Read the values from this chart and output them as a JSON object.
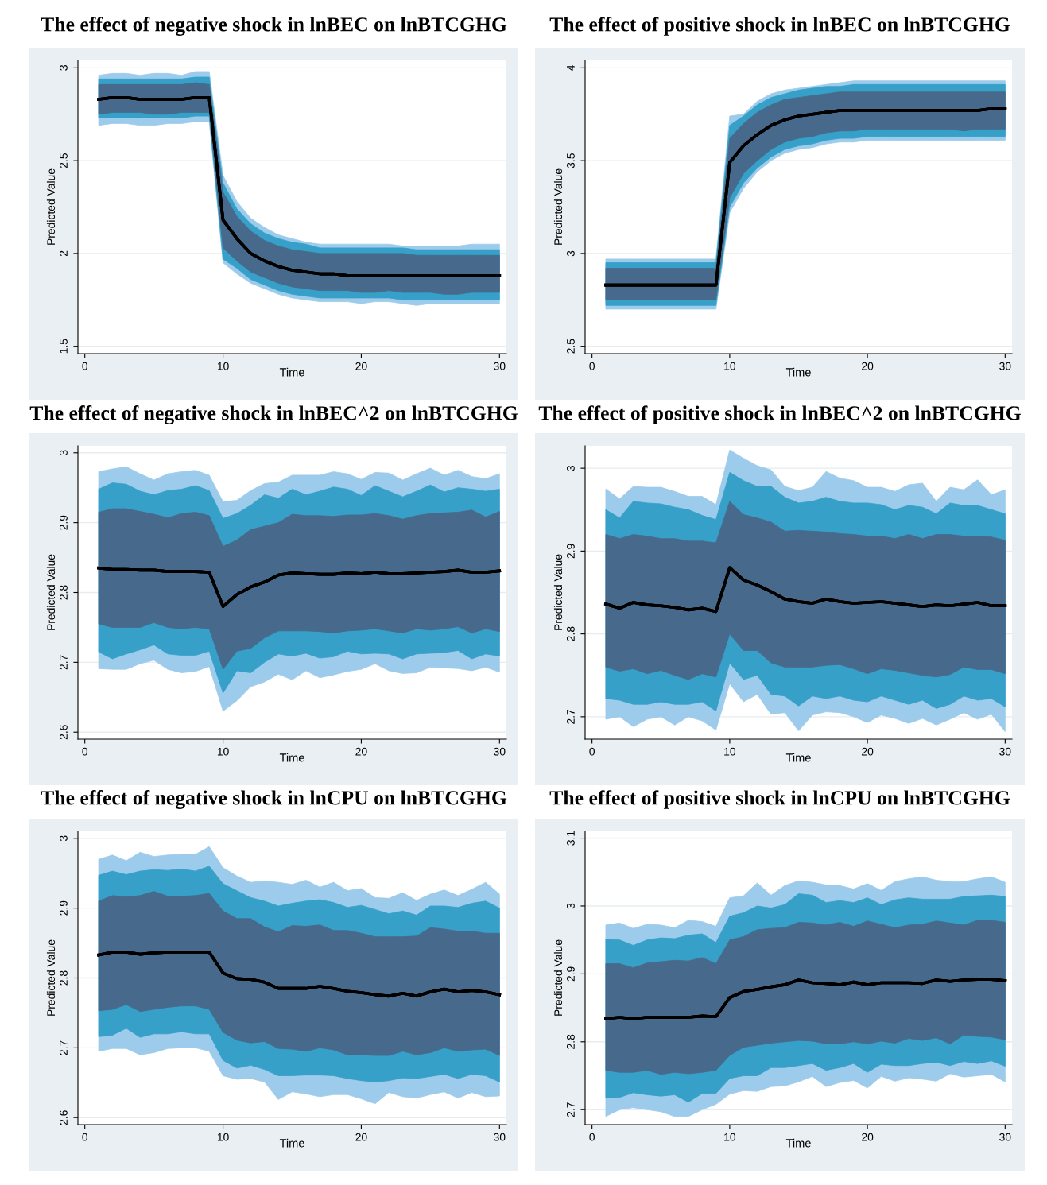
{
  "chart_data": [
    {
      "type": "line",
      "title": "The effect of negative shock in lnBEC on lnBTCGHG",
      "xlabel": "Time",
      "ylabel": "Predicted Value",
      "x": [
        1,
        2,
        3,
        4,
        5,
        6,
        7,
        8,
        9,
        10,
        11,
        12,
        13,
        14,
        15,
        16,
        17,
        18,
        19,
        20,
        21,
        22,
        23,
        24,
        25,
        26,
        27,
        28,
        29,
        30
      ],
      "xlim": [
        -0.5,
        30.5
      ],
      "xticks": [
        0,
        10,
        20,
        30
      ],
      "ylim": [
        1.46,
        3.04
      ],
      "yticks": [
        1.5,
        2,
        2.5,
        3
      ],
      "grid": "y",
      "series": [
        {
          "type": "line",
          "color": "#000000",
          "values": [
            2.83,
            2.84,
            2.84,
            2.83,
            2.83,
            2.83,
            2.83,
            2.84,
            2.84,
            2.18,
            2.08,
            2.0,
            1.96,
            1.93,
            1.91,
            1.9,
            1.89,
            1.89,
            1.88,
            1.88,
            1.88,
            1.88,
            1.88,
            1.88,
            1.88,
            1.88,
            1.88,
            1.88,
            1.88,
            1.88
          ],
          "lower": [
            2.69,
            2.7,
            2.7,
            2.69,
            2.69,
            2.7,
            2.7,
            2.71,
            2.71,
            1.95,
            1.89,
            1.84,
            1.81,
            1.78,
            1.76,
            1.75,
            1.74,
            1.74,
            1.74,
            1.73,
            1.74,
            1.74,
            1.73,
            1.72,
            1.73,
            1.73,
            1.73,
            1.73,
            1.73,
            1.73
          ],
          "upper": [
            2.96,
            2.97,
            2.97,
            2.96,
            2.97,
            2.97,
            2.96,
            2.98,
            2.98,
            2.42,
            2.28,
            2.19,
            2.14,
            2.1,
            2.08,
            2.06,
            2.05,
            2.05,
            2.05,
            2.05,
            2.05,
            2.05,
            2.04,
            2.04,
            2.04,
            2.04,
            2.04,
            2.05,
            2.05,
            2.05
          ]
        },
        {
          "type": "line",
          "color": "#000000",
          "values": [
            2.83,
            2.84,
            2.84,
            2.83,
            2.83,
            2.83,
            2.83,
            2.84,
            2.84,
            2.18,
            2.08,
            2.0,
            1.96,
            1.93,
            1.91,
            1.9,
            1.89,
            1.89,
            1.88,
            1.88,
            1.88,
            1.88,
            1.88,
            1.88,
            1.88,
            1.88,
            1.88,
            1.88,
            1.88,
            1.88
          ],
          "lower": [
            2.73,
            2.73,
            2.73,
            2.73,
            2.73,
            2.73,
            2.73,
            2.74,
            2.74,
            1.97,
            1.92,
            1.86,
            1.83,
            1.8,
            1.78,
            1.77,
            1.76,
            1.76,
            1.76,
            1.76,
            1.76,
            1.76,
            1.75,
            1.75,
            1.75,
            1.75,
            1.75,
            1.75,
            1.75,
            1.75
          ],
          "upper": [
            2.94,
            2.94,
            2.94,
            2.94,
            2.94,
            2.94,
            2.94,
            2.95,
            2.95,
            2.38,
            2.24,
            2.16,
            2.11,
            2.08,
            2.06,
            2.05,
            2.03,
            2.03,
            2.03,
            2.03,
            2.03,
            2.03,
            2.03,
            2.02,
            2.02,
            2.02,
            2.02,
            2.02,
            2.02,
            2.02
          ]
        },
        {
          "type": "line",
          "color": "#000000",
          "values": [
            2.83,
            2.84,
            2.84,
            2.83,
            2.83,
            2.83,
            2.83,
            2.84,
            2.84,
            2.18,
            2.08,
            2.0,
            1.96,
            1.93,
            1.91,
            1.9,
            1.89,
            1.89,
            1.88,
            1.88,
            1.88,
            1.88,
            1.88,
            1.88,
            1.88,
            1.88,
            1.88,
            1.88,
            1.88,
            1.88
          ],
          "lower": [
            2.75,
            2.76,
            2.76,
            2.76,
            2.75,
            2.75,
            2.76,
            2.76,
            2.76,
            2.03,
            1.96,
            1.9,
            1.87,
            1.84,
            1.82,
            1.81,
            1.8,
            1.8,
            1.8,
            1.79,
            1.79,
            1.8,
            1.79,
            1.79,
            1.79,
            1.78,
            1.78,
            1.79,
            1.79,
            1.79
          ],
          "upper": [
            2.91,
            2.91,
            2.91,
            2.91,
            2.91,
            2.91,
            2.91,
            2.92,
            2.91,
            2.33,
            2.2,
            2.12,
            2.07,
            2.04,
            2.02,
            2.01,
            2.0,
            2.0,
            2.0,
            2.0,
            2.0,
            2.0,
            2.0,
            1.99,
            1.99,
            1.99,
            1.99,
            1.99,
            1.99,
            1.99
          ]
        }
      ]
    },
    {
      "type": "line",
      "title": "The effect of positive shock in lnBEC on lnBTCGHG",
      "xlabel": "Time",
      "ylabel": "Predicted Value",
      "x": [
        1,
        2,
        3,
        4,
        5,
        6,
        7,
        8,
        9,
        10,
        11,
        12,
        13,
        14,
        15,
        16,
        17,
        18,
        19,
        20,
        21,
        22,
        23,
        24,
        25,
        26,
        27,
        28,
        29,
        30
      ],
      "xlim": [
        -0.5,
        30.5
      ],
      "xticks": [
        0,
        10,
        20,
        30
      ],
      "ylim": [
        2.46,
        4.04
      ],
      "yticks": [
        2.5,
        3,
        3.5,
        4
      ],
      "grid": "y",
      "series": [
        {
          "type": "line",
          "color": "#000000",
          "values": [
            2.83,
            2.83,
            2.83,
            2.83,
            2.83,
            2.83,
            2.83,
            2.83,
            2.83,
            3.49,
            3.58,
            3.64,
            3.69,
            3.72,
            3.74,
            3.75,
            3.76,
            3.77,
            3.77,
            3.77,
            3.77,
            3.77,
            3.77,
            3.77,
            3.77,
            3.77,
            3.77,
            3.77,
            3.78,
            3.78
          ],
          "lower": [
            2.7,
            2.7,
            2.7,
            2.7,
            2.7,
            2.7,
            2.7,
            2.7,
            2.7,
            3.22,
            3.35,
            3.44,
            3.5,
            3.54,
            3.56,
            3.57,
            3.59,
            3.6,
            3.6,
            3.61,
            3.61,
            3.61,
            3.61,
            3.61,
            3.61,
            3.61,
            3.61,
            3.61,
            3.61,
            3.61
          ],
          "upper": [
            2.97,
            2.97,
            2.97,
            2.97,
            2.97,
            2.97,
            2.97,
            2.97,
            2.97,
            3.74,
            3.75,
            3.82,
            3.86,
            3.88,
            3.89,
            3.9,
            3.91,
            3.92,
            3.93,
            3.93,
            3.93,
            3.93,
            3.93,
            3.93,
            3.93,
            3.93,
            3.93,
            3.93,
            3.93,
            3.93
          ]
        },
        {
          "type": "line",
          "color": "#000000",
          "values": [
            2.83,
            2.83,
            2.83,
            2.83,
            2.83,
            2.83,
            2.83,
            2.83,
            2.83,
            3.49,
            3.58,
            3.64,
            3.69,
            3.72,
            3.74,
            3.75,
            3.76,
            3.77,
            3.77,
            3.77,
            3.77,
            3.77,
            3.77,
            3.77,
            3.77,
            3.77,
            3.77,
            3.77,
            3.78,
            3.78
          ],
          "lower": [
            2.72,
            2.72,
            2.72,
            2.72,
            2.72,
            2.72,
            2.72,
            2.72,
            2.72,
            3.25,
            3.38,
            3.46,
            3.52,
            3.56,
            3.58,
            3.59,
            3.61,
            3.62,
            3.62,
            3.63,
            3.63,
            3.63,
            3.63,
            3.63,
            3.63,
            3.63,
            3.63,
            3.63,
            3.63,
            3.63
          ],
          "upper": [
            2.95,
            2.95,
            2.95,
            2.95,
            2.95,
            2.95,
            2.95,
            2.95,
            2.95,
            3.69,
            3.74,
            3.8,
            3.84,
            3.86,
            3.88,
            3.89,
            3.9,
            3.9,
            3.91,
            3.91,
            3.91,
            3.91,
            3.91,
            3.91,
            3.91,
            3.91,
            3.91,
            3.91,
            3.91,
            3.91
          ]
        },
        {
          "type": "line",
          "color": "#000000",
          "values": [
            2.83,
            2.83,
            2.83,
            2.83,
            2.83,
            2.83,
            2.83,
            2.83,
            2.83,
            3.49,
            3.58,
            3.64,
            3.69,
            3.72,
            3.74,
            3.75,
            3.76,
            3.77,
            3.77,
            3.77,
            3.77,
            3.77,
            3.77,
            3.77,
            3.77,
            3.77,
            3.77,
            3.77,
            3.78,
            3.78
          ],
          "lower": [
            2.75,
            2.75,
            2.75,
            2.75,
            2.75,
            2.75,
            2.75,
            2.75,
            2.75,
            3.3,
            3.43,
            3.5,
            3.56,
            3.6,
            3.62,
            3.63,
            3.65,
            3.66,
            3.66,
            3.67,
            3.67,
            3.67,
            3.67,
            3.67,
            3.67,
            3.67,
            3.66,
            3.67,
            3.67,
            3.67
          ],
          "upper": [
            2.92,
            2.92,
            2.92,
            2.92,
            2.92,
            2.92,
            2.92,
            2.92,
            2.92,
            3.62,
            3.7,
            3.76,
            3.8,
            3.83,
            3.84,
            3.85,
            3.86,
            3.87,
            3.87,
            3.87,
            3.87,
            3.87,
            3.87,
            3.87,
            3.87,
            3.87,
            3.87,
            3.87,
            3.87,
            3.87
          ]
        }
      ]
    },
    {
      "type": "line",
      "title": "The effect of negative shock in lnBEC^2 on lnBTCGHG",
      "xlabel": "Time",
      "ylabel": "Predicted Value",
      "x": [
        1,
        2,
        3,
        4,
        5,
        6,
        7,
        8,
        9,
        10,
        11,
        12,
        13,
        14,
        15,
        16,
        17,
        18,
        19,
        20,
        21,
        22,
        23,
        24,
        25,
        26,
        27,
        28,
        29,
        30
      ],
      "xlim": [
        -0.5,
        30.5
      ],
      "xticks": [
        0,
        10,
        20,
        30
      ],
      "ylim": [
        2.59,
        3.01
      ],
      "yticks": [
        2.6,
        2.7,
        2.8,
        2.9,
        3
      ],
      "grid": "y",
      "series": [
        {
          "type": "line",
          "color": "#000000",
          "values": [
            2.835,
            2.833,
            2.833,
            2.832,
            2.832,
            2.83,
            2.83,
            2.83,
            2.829,
            2.78,
            2.797,
            2.808,
            2.815,
            2.825,
            2.828,
            2.827,
            2.826,
            2.826,
            2.828,
            2.827,
            2.829,
            2.827,
            2.827,
            2.828,
            2.829,
            2.83,
            2.832,
            2.829,
            2.829,
            2.831
          ],
          "lower": [
            2.691,
            2.69,
            2.69,
            2.698,
            2.703,
            2.69,
            2.685,
            2.687,
            2.694,
            2.63,
            2.645,
            2.665,
            2.672,
            2.683,
            2.675,
            2.688,
            2.678,
            2.682,
            2.687,
            2.69,
            2.698,
            2.688,
            2.684,
            2.685,
            2.693,
            2.692,
            2.691,
            2.688,
            2.693,
            2.686
          ],
          "upper": [
            2.973,
            2.977,
            2.98,
            2.97,
            2.961,
            2.97,
            2.973,
            2.975,
            2.968,
            2.93,
            2.932,
            2.946,
            2.956,
            2.958,
            2.968,
            2.968,
            2.968,
            2.973,
            2.97,
            2.962,
            2.972,
            2.971,
            2.961,
            2.97,
            2.978,
            2.968,
            2.975,
            2.966,
            2.963,
            2.97
          ]
        },
        {
          "type": "line",
          "color": "#000000",
          "values": [
            2.835,
            2.833,
            2.833,
            2.832,
            2.832,
            2.83,
            2.83,
            2.83,
            2.829,
            2.78,
            2.797,
            2.808,
            2.815,
            2.825,
            2.828,
            2.827,
            2.826,
            2.826,
            2.828,
            2.827,
            2.829,
            2.827,
            2.827,
            2.828,
            2.829,
            2.83,
            2.832,
            2.829,
            2.829,
            2.831
          ],
          "lower": [
            2.715,
            2.705,
            2.712,
            2.718,
            2.725,
            2.712,
            2.71,
            2.71,
            2.716,
            2.656,
            2.688,
            2.685,
            2.7,
            2.712,
            2.709,
            2.713,
            2.706,
            2.708,
            2.716,
            2.712,
            2.713,
            2.712,
            2.705,
            2.712,
            2.713,
            2.714,
            2.717,
            2.705,
            2.712,
            2.709
          ],
          "upper": [
            2.948,
            2.957,
            2.955,
            2.945,
            2.94,
            2.946,
            2.948,
            2.953,
            2.946,
            2.906,
            2.913,
            2.925,
            2.94,
            2.935,
            2.948,
            2.94,
            2.945,
            2.951,
            2.948,
            2.939,
            2.953,
            2.945,
            2.937,
            2.945,
            2.954,
            2.944,
            2.95,
            2.948,
            2.945,
            2.948
          ]
        },
        {
          "type": "line",
          "color": "#000000",
          "values": [
            2.835,
            2.833,
            2.833,
            2.832,
            2.832,
            2.83,
            2.83,
            2.83,
            2.829,
            2.78,
            2.797,
            2.808,
            2.815,
            2.825,
            2.828,
            2.827,
            2.826,
            2.826,
            2.828,
            2.827,
            2.829,
            2.827,
            2.827,
            2.828,
            2.829,
            2.83,
            2.832,
            2.829,
            2.829,
            2.831
          ],
          "lower": [
            2.755,
            2.75,
            2.75,
            2.75,
            2.757,
            2.75,
            2.748,
            2.75,
            2.748,
            2.69,
            2.716,
            2.72,
            2.735,
            2.745,
            2.745,
            2.745,
            2.744,
            2.742,
            2.745,
            2.746,
            2.748,
            2.745,
            2.742,
            2.748,
            2.746,
            2.748,
            2.751,
            2.742,
            2.748,
            2.744
          ],
          "upper": [
            2.915,
            2.92,
            2.92,
            2.916,
            2.912,
            2.907,
            2.913,
            2.915,
            2.91,
            2.866,
            2.875,
            2.89,
            2.895,
            2.9,
            2.912,
            2.91,
            2.91,
            2.909,
            2.911,
            2.911,
            2.913,
            2.91,
            2.905,
            2.91,
            2.913,
            2.914,
            2.915,
            2.918,
            2.908,
            2.916
          ]
        }
      ]
    },
    {
      "type": "line",
      "title": "The effect of positive shock in lnBEC^2 on lnBTCGHG",
      "xlabel": "Time",
      "ylabel": "Predicted Value",
      "x": [
        1,
        2,
        3,
        4,
        5,
        6,
        7,
        8,
        9,
        10,
        11,
        12,
        13,
        14,
        15,
        16,
        17,
        18,
        19,
        20,
        21,
        22,
        23,
        24,
        25,
        26,
        27,
        28,
        29,
        30
      ],
      "xlim": [
        -0.5,
        30.5
      ],
      "xticks": [
        0,
        10,
        20,
        30
      ],
      "ylim": [
        2.673,
        3.027
      ],
      "yticks": [
        2.7,
        2.8,
        2.9,
        3
      ],
      "grid": "y",
      "series": [
        {
          "type": "line",
          "color": "#000000",
          "values": [
            2.836,
            2.831,
            2.838,
            2.835,
            2.834,
            2.832,
            2.829,
            2.831,
            2.827,
            2.88,
            2.865,
            2.859,
            2.851,
            2.842,
            2.839,
            2.837,
            2.842,
            2.839,
            2.837,
            2.838,
            2.839,
            2.837,
            2.835,
            2.833,
            2.835,
            2.834,
            2.836,
            2.838,
            2.834,
            2.834
          ],
          "lower": [
            2.697,
            2.7,
            2.688,
            2.697,
            2.7,
            2.69,
            2.7,
            2.695,
            2.684,
            2.74,
            2.718,
            2.727,
            2.703,
            2.705,
            2.683,
            2.702,
            2.706,
            2.705,
            2.7,
            2.693,
            2.702,
            2.698,
            2.692,
            2.698,
            2.69,
            2.697,
            2.705,
            2.697,
            2.703,
            2.682
          ],
          "upper": [
            2.975,
            2.963,
            2.978,
            2.977,
            2.977,
            2.972,
            2.966,
            2.966,
            2.956,
            3.022,
            3.012,
            3.003,
            2.998,
            2.978,
            2.973,
            2.977,
            2.996,
            2.988,
            2.985,
            2.977,
            2.977,
            2.972,
            2.98,
            2.982,
            2.96,
            2.977,
            2.974,
            2.986,
            2.968,
            2.974
          ]
        },
        {
          "type": "line",
          "color": "#000000",
          "values": [
            2.836,
            2.831,
            2.838,
            2.835,
            2.834,
            2.832,
            2.829,
            2.831,
            2.827,
            2.88,
            2.865,
            2.859,
            2.851,
            2.842,
            2.839,
            2.837,
            2.842,
            2.839,
            2.837,
            2.838,
            2.839,
            2.837,
            2.835,
            2.833,
            2.835,
            2.834,
            2.836,
            2.838,
            2.834,
            2.834
          ],
          "lower": [
            2.722,
            2.72,
            2.715,
            2.715,
            2.718,
            2.715,
            2.715,
            2.718,
            2.707,
            2.765,
            2.745,
            2.75,
            2.727,
            2.725,
            2.713,
            2.725,
            2.722,
            2.725,
            2.72,
            2.718,
            2.725,
            2.72,
            2.715,
            2.72,
            2.71,
            2.715,
            2.725,
            2.72,
            2.722,
            2.712
          ],
          "upper": [
            2.95,
            2.94,
            2.96,
            2.958,
            2.957,
            2.953,
            2.95,
            2.943,
            2.938,
            2.995,
            2.985,
            2.978,
            2.978,
            2.965,
            2.958,
            2.96,
            2.965,
            2.96,
            2.958,
            2.958,
            2.956,
            2.95,
            2.955,
            2.953,
            2.945,
            2.958,
            2.955,
            2.955,
            2.95,
            2.945
          ]
        },
        {
          "type": "line",
          "color": "#000000",
          "values": [
            2.836,
            2.831,
            2.838,
            2.835,
            2.834,
            2.832,
            2.829,
            2.831,
            2.827,
            2.88,
            2.865,
            2.859,
            2.851,
            2.842,
            2.839,
            2.837,
            2.842,
            2.839,
            2.837,
            2.838,
            2.839,
            2.837,
            2.835,
            2.833,
            2.835,
            2.834,
            2.836,
            2.838,
            2.834,
            2.834
          ],
          "lower": [
            2.76,
            2.755,
            2.758,
            2.752,
            2.756,
            2.75,
            2.745,
            2.752,
            2.748,
            2.8,
            2.78,
            2.78,
            2.765,
            2.76,
            2.76,
            2.76,
            2.762,
            2.763,
            2.758,
            2.752,
            2.758,
            2.756,
            2.753,
            2.75,
            2.748,
            2.751,
            2.76,
            2.757,
            2.757,
            2.752
          ],
          "upper": [
            2.92,
            2.915,
            2.92,
            2.918,
            2.915,
            2.915,
            2.912,
            2.912,
            2.91,
            2.96,
            2.944,
            2.94,
            2.935,
            2.924,
            2.925,
            2.924,
            2.923,
            2.921,
            2.92,
            2.918,
            2.918,
            2.915,
            2.92,
            2.915,
            2.92,
            2.92,
            2.918,
            2.918,
            2.917,
            2.913
          ]
        }
      ]
    },
    {
      "type": "line",
      "title": "The effect of negative shock in lnCPU on lnBTCGHG",
      "xlabel": "Time",
      "ylabel": "Predicted Value",
      "x": [
        1,
        2,
        3,
        4,
        5,
        6,
        7,
        8,
        9,
        10,
        11,
        12,
        13,
        14,
        15,
        16,
        17,
        18,
        19,
        20,
        21,
        22,
        23,
        24,
        25,
        26,
        27,
        28,
        29,
        30
      ],
      "xlim": [
        -0.5,
        30.5
      ],
      "xticks": [
        0,
        10,
        20,
        30
      ],
      "ylim": [
        2.59,
        3.01
      ],
      "yticks": [
        2.6,
        2.7,
        2.8,
        2.9,
        3
      ],
      "grid": "y",
      "series": [
        {
          "type": "line",
          "color": "#000000",
          "values": [
            2.833,
            2.837,
            2.837,
            2.834,
            2.836,
            2.837,
            2.837,
            2.837,
            2.837,
            2.807,
            2.799,
            2.798,
            2.794,
            2.785,
            2.785,
            2.785,
            2.788,
            2.785,
            2.781,
            2.779,
            2.776,
            2.774,
            2.778,
            2.774,
            2.78,
            2.784,
            2.78,
            2.782,
            2.78,
            2.776
          ],
          "lower": [
            2.695,
            2.699,
            2.699,
            2.69,
            2.693,
            2.699,
            2.7,
            2.7,
            2.695,
            2.66,
            2.655,
            2.656,
            2.651,
            2.626,
            2.637,
            2.634,
            2.63,
            2.633,
            2.633,
            2.627,
            2.62,
            2.636,
            2.63,
            2.628,
            2.633,
            2.637,
            2.628,
            2.636,
            2.63,
            2.631
          ],
          "upper": [
            2.97,
            2.976,
            2.968,
            2.98,
            2.974,
            2.976,
            2.977,
            2.977,
            2.988,
            2.958,
            2.946,
            2.937,
            2.939,
            2.937,
            2.934,
            2.94,
            2.93,
            2.937,
            2.925,
            2.928,
            2.915,
            2.914,
            2.922,
            2.911,
            2.92,
            2.926,
            2.918,
            2.927,
            2.937,
            2.92
          ]
        },
        {
          "type": "line",
          "color": "#000000",
          "values": [
            2.833,
            2.837,
            2.837,
            2.834,
            2.836,
            2.837,
            2.837,
            2.837,
            2.837,
            2.807,
            2.799,
            2.798,
            2.794,
            2.785,
            2.785,
            2.785,
            2.788,
            2.785,
            2.781,
            2.779,
            2.776,
            2.774,
            2.778,
            2.774,
            2.78,
            2.784,
            2.78,
            2.782,
            2.78,
            2.776
          ],
          "lower": [
            2.716,
            2.718,
            2.728,
            2.715,
            2.72,
            2.72,
            2.723,
            2.72,
            2.72,
            2.682,
            2.671,
            2.675,
            2.669,
            2.66,
            2.66,
            2.661,
            2.661,
            2.66,
            2.656,
            2.653,
            2.651,
            2.653,
            2.657,
            2.656,
            2.659,
            2.662,
            2.656,
            2.662,
            2.66,
            2.651
          ],
          "upper": [
            2.947,
            2.953,
            2.948,
            2.953,
            2.955,
            2.954,
            2.956,
            2.953,
            2.96,
            2.935,
            2.925,
            2.915,
            2.91,
            2.903,
            2.907,
            2.91,
            2.912,
            2.908,
            2.901,
            2.904,
            2.898,
            2.892,
            2.896,
            2.89,
            2.903,
            2.903,
            2.901,
            2.907,
            2.91,
            2.9
          ]
        },
        {
          "type": "line",
          "color": "#000000",
          "values": [
            2.833,
            2.837,
            2.837,
            2.834,
            2.836,
            2.837,
            2.837,
            2.837,
            2.837,
            2.807,
            2.799,
            2.798,
            2.794,
            2.785,
            2.785,
            2.785,
            2.788,
            2.785,
            2.781,
            2.779,
            2.776,
            2.774,
            2.778,
            2.774,
            2.78,
            2.784,
            2.78,
            2.782,
            2.78,
            2.776
          ],
          "lower": [
            2.753,
            2.755,
            2.762,
            2.752,
            2.755,
            2.758,
            2.76,
            2.76,
            2.755,
            2.722,
            2.711,
            2.707,
            2.709,
            2.699,
            2.698,
            2.695,
            2.7,
            2.697,
            2.69,
            2.69,
            2.689,
            2.689,
            2.695,
            2.69,
            2.693,
            2.7,
            2.695,
            2.697,
            2.698,
            2.689
          ],
          "upper": [
            2.91,
            2.918,
            2.916,
            2.918,
            2.924,
            2.917,
            2.917,
            2.918,
            2.921,
            2.896,
            2.885,
            2.885,
            2.873,
            2.866,
            2.875,
            2.874,
            2.876,
            2.868,
            2.868,
            2.864,
            2.859,
            2.859,
            2.859,
            2.86,
            2.872,
            2.87,
            2.867,
            2.867,
            2.864,
            2.864
          ]
        }
      ]
    },
    {
      "type": "line",
      "title": "The effect of positive shock in lnCPU on lnBTCGHG",
      "xlabel": "Time",
      "ylabel": "Predicted Value",
      "x": [
        1,
        2,
        3,
        4,
        5,
        6,
        7,
        8,
        9,
        10,
        11,
        12,
        13,
        14,
        15,
        16,
        17,
        18,
        19,
        20,
        21,
        22,
        23,
        24,
        25,
        26,
        27,
        28,
        29,
        30
      ],
      "xlim": [
        -0.5,
        30.5
      ],
      "xticks": [
        0,
        10,
        20,
        30
      ],
      "ylim": [
        2.678,
        3.11
      ],
      "yticks": [
        2.7,
        2.8,
        2.9,
        3,
        3.1
      ],
      "grid": "y",
      "series": [
        {
          "type": "line",
          "color": "#000000",
          "values": [
            2.834,
            2.836,
            2.834,
            2.836,
            2.836,
            2.836,
            2.836,
            2.838,
            2.837,
            2.865,
            2.874,
            2.877,
            2.881,
            2.884,
            2.891,
            2.887,
            2.886,
            2.884,
            2.888,
            2.884,
            2.887,
            2.887,
            2.887,
            2.886,
            2.891,
            2.889,
            2.891,
            2.892,
            2.892,
            2.89
          ],
          "lower": [
            2.69,
            2.7,
            2.703,
            2.7,
            2.697,
            2.69,
            2.69,
            2.7,
            2.708,
            2.723,
            2.728,
            2.727,
            2.734,
            2.735,
            2.741,
            2.749,
            2.734,
            2.74,
            2.743,
            2.732,
            2.749,
            2.742,
            2.747,
            2.745,
            2.742,
            2.753,
            2.748,
            2.75,
            2.752,
            2.741
          ],
          "upper": [
            2.972,
            2.975,
            2.967,
            2.973,
            2.972,
            2.968,
            2.979,
            2.977,
            2.97,
            3.012,
            3.015,
            3.034,
            3.016,
            3.03,
            3.037,
            3.035,
            3.031,
            3.03,
            3.025,
            3.033,
            3.023,
            3.036,
            3.04,
            3.043,
            3.038,
            3.036,
            3.036,
            3.04,
            3.043,
            3.035
          ]
        },
        {
          "type": "line",
          "color": "#000000",
          "values": [
            2.834,
            2.836,
            2.834,
            2.836,
            2.836,
            2.836,
            2.836,
            2.838,
            2.837,
            2.865,
            2.874,
            2.877,
            2.881,
            2.884,
            2.891,
            2.887,
            2.886,
            2.884,
            2.888,
            2.884,
            2.887,
            2.887,
            2.887,
            2.886,
            2.891,
            2.889,
            2.891,
            2.892,
            2.892,
            2.89
          ],
          "lower": [
            2.717,
            2.718,
            2.725,
            2.722,
            2.72,
            2.722,
            2.711,
            2.724,
            2.724,
            2.746,
            2.75,
            2.75,
            2.762,
            2.762,
            2.765,
            2.768,
            2.758,
            2.762,
            2.768,
            2.755,
            2.767,
            2.765,
            2.765,
            2.768,
            2.77,
            2.765,
            2.771,
            2.768,
            2.772,
            2.764
          ],
          "upper": [
            2.951,
            2.95,
            2.942,
            2.95,
            2.953,
            2.952,
            2.957,
            2.959,
            2.946,
            2.985,
            2.99,
            3.0,
            2.997,
            3.002,
            3.018,
            3.016,
            3.005,
            3.008,
            3.005,
            3.012,
            3.002,
            3.009,
            3.012,
            3.01,
            3.01,
            3.01,
            3.014,
            3.015,
            3.016,
            3.014
          ]
        },
        {
          "type": "line",
          "color": "#000000",
          "values": [
            2.834,
            2.836,
            2.834,
            2.836,
            2.836,
            2.836,
            2.836,
            2.838,
            2.837,
            2.865,
            2.874,
            2.877,
            2.881,
            2.884,
            2.891,
            2.887,
            2.886,
            2.884,
            2.888,
            2.884,
            2.887,
            2.887,
            2.887,
            2.886,
            2.891,
            2.889,
            2.891,
            2.892,
            2.892,
            2.89
          ],
          "lower": [
            2.758,
            2.755,
            2.755,
            2.758,
            2.752,
            2.755,
            2.753,
            2.755,
            2.758,
            2.78,
            2.792,
            2.795,
            2.798,
            2.8,
            2.802,
            2.801,
            2.797,
            2.797,
            2.8,
            2.797,
            2.801,
            2.798,
            2.805,
            2.802,
            2.806,
            2.797,
            2.81,
            2.808,
            2.807,
            2.803
          ],
          "upper": [
            2.915,
            2.915,
            2.909,
            2.916,
            2.918,
            2.92,
            2.919,
            2.924,
            2.915,
            2.95,
            2.955,
            2.965,
            2.967,
            2.968,
            2.976,
            2.975,
            2.972,
            2.976,
            2.97,
            2.978,
            2.973,
            2.968,
            2.972,
            2.973,
            2.978,
            2.975,
            2.972,
            2.979,
            2.979,
            2.976
          ]
        }
      ]
    }
  ]
}
